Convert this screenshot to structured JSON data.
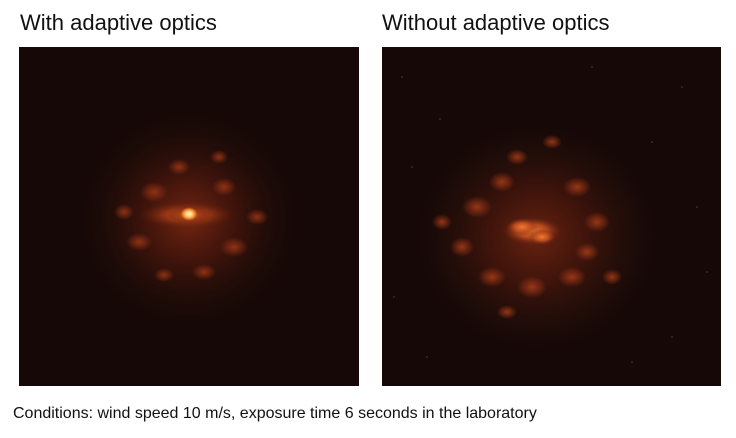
{
  "panels": [
    {
      "title": "With adaptive optics",
      "spot": "sharp-core"
    },
    {
      "title": "Without adaptive optics",
      "spot": "blurred"
    }
  ],
  "caption": "Conditions: wind speed 10 m/s, exposure time 6 seconds in the laboratory",
  "colors": {
    "background": "#150807",
    "glow": "#7a2712",
    "core": "#ffd37a",
    "speckle": "#d0581e"
  }
}
